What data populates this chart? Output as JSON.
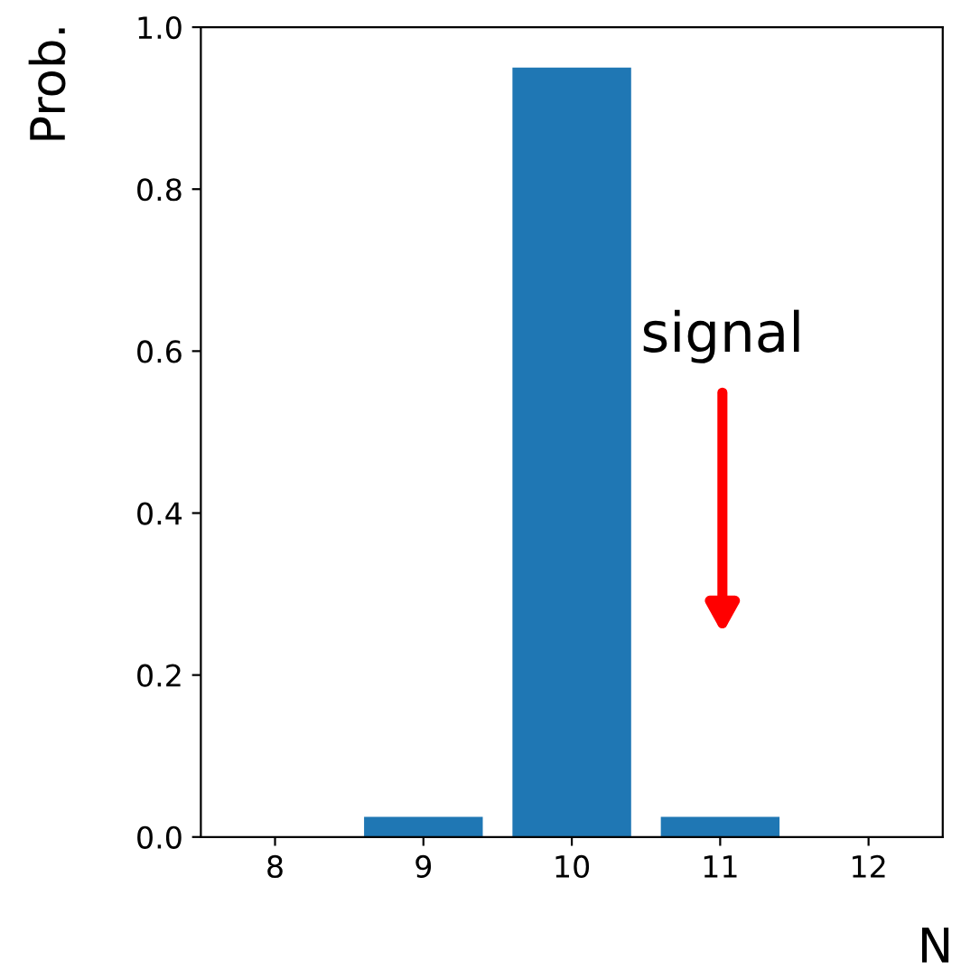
{
  "chart_data": {
    "type": "bar",
    "x": [
      8,
      9,
      10,
      11,
      12
    ],
    "values": [
      0,
      0.025,
      0.95,
      0.025,
      0
    ],
    "color": "#1f77b4",
    "xlabel": "N",
    "ylabel": "Prob.",
    "xlim": [
      7.5,
      12.5
    ],
    "xticks": [
      8,
      9,
      10,
      11,
      12
    ],
    "ylim": [
      0,
      1.0
    ],
    "yticks": [
      {
        "value": 0,
        "label": "0.0"
      },
      {
        "value": 0.2,
        "label": "0.2"
      },
      {
        "value": 0.4,
        "label": "0.4"
      },
      {
        "value": 0.6,
        "label": "0.6"
      },
      {
        "value": 0.8,
        "label": "0.8"
      },
      {
        "value": 1.0,
        "label": "1.0"
      }
    ],
    "annotations": [
      "signal"
    ],
    "grid": false
  }
}
